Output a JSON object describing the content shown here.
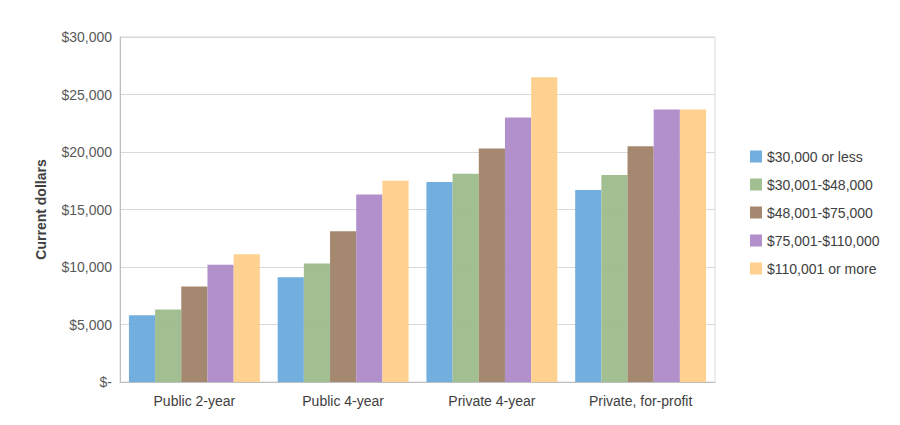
{
  "chart_data": {
    "type": "bar",
    "y_label": "Current dollars",
    "categories": [
      "Public 2-year",
      "Public 4-year",
      "Private 4-year",
      "Private, for-profit"
    ],
    "series": [
      {
        "name": "$30,000 or less",
        "color": "#6aaadc",
        "values": [
          5800,
          9100,
          17400,
          16700
        ]
      },
      {
        "name": "$30,001-$48,000",
        "color": "#9cbc8a",
        "values": [
          6300,
          10300,
          18100,
          18000
        ]
      },
      {
        "name": "$48,001-$75,000",
        "color": "#a08268",
        "values": [
          8300,
          13100,
          20300,
          20500
        ]
      },
      {
        "name": "$75,001-$110,000",
        "color": "#ad8ac9",
        "values": [
          10200,
          16300,
          23000,
          23700
        ]
      },
      {
        "name": "$110,001 or more",
        "color": "#fecf8a",
        "values": [
          11100,
          17500,
          26500,
          23700
        ]
      }
    ],
    "ylim": [
      0,
      30000
    ],
    "yticks": [
      {
        "value": 0,
        "label": "$-"
      },
      {
        "value": 5000,
        "label": "$5,000"
      },
      {
        "value": 10000,
        "label": "$10,000"
      },
      {
        "value": 15000,
        "label": "$15,000"
      },
      {
        "value": 20000,
        "label": "$20,000"
      },
      {
        "value": 25000,
        "label": "$25,000"
      },
      {
        "value": 30000,
        "label": "$30,000"
      }
    ],
    "grid": true,
    "legend": "right"
  }
}
